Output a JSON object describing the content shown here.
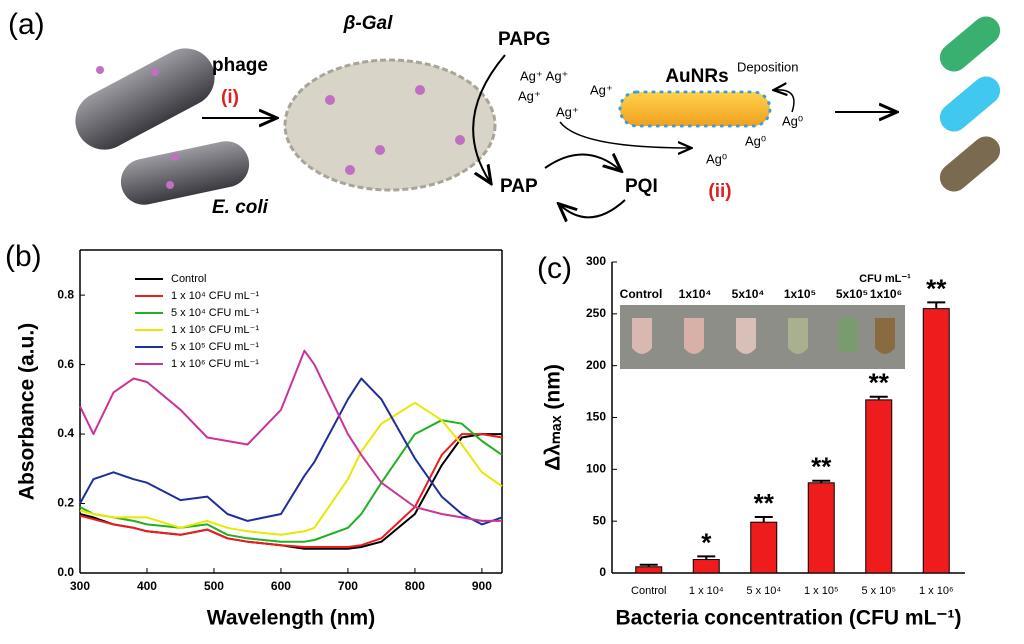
{
  "diagram": {
    "panel": "(a)",
    "phage": "phage",
    "step1": "(i)",
    "enzyme": "β-Gal",
    "papg": "PAPG",
    "ag_a": "Ag⁺ Ag⁺",
    "ag_b": "Ag⁺",
    "ag_c": "Ag⁺",
    "ag_d": "Ag⁺",
    "aunrs": "AuNRs",
    "deposition": "Deposition",
    "ag0_a": "Ag⁰",
    "ag0_b": "Ag⁰",
    "ag0_c": "Ag⁰",
    "pap": "PAP",
    "pqi": "PQI",
    "step2": "(ii)",
    "bacteria": "E. coli"
  },
  "chart_data": [
    {
      "type": "line",
      "panel": "(b)",
      "x_label": "Wavelength (nm)",
      "y_label": "Absorbance (a.u.)",
      "x": [
        300,
        320,
        350,
        380,
        400,
        450,
        490,
        520,
        550,
        600,
        635,
        650,
        700,
        720,
        750,
        800,
        840,
        870,
        900,
        930
      ],
      "xlim": [
        300,
        930
      ],
      "xticks": [
        300,
        400,
        500,
        600,
        700,
        800,
        900
      ],
      "ylim": [
        0,
        0.93
      ],
      "yticks": [
        {
          "value": 0,
          "label": "0.0"
        },
        0.2,
        0.4,
        0.6,
        0.8
      ],
      "legend": "upper left",
      "series": [
        {
          "name": "Control",
          "color": "#000000",
          "values": [
            0.17,
            0.16,
            0.14,
            0.13,
            0.12,
            0.11,
            0.125,
            0.1,
            0.09,
            0.08,
            0.07,
            0.07,
            0.07,
            0.075,
            0.09,
            0.17,
            0.31,
            0.39,
            0.4,
            0.4
          ]
        },
        {
          "name": "1 x 10⁴ CFU mL⁻¹",
          "color": "#ee1c1c",
          "values": [
            0.165,
            0.155,
            0.14,
            0.13,
            0.12,
            0.11,
            0.125,
            0.1,
            0.09,
            0.08,
            0.075,
            0.075,
            0.075,
            0.08,
            0.1,
            0.19,
            0.34,
            0.4,
            0.4,
            0.39
          ]
        },
        {
          "name": "5 x 10⁴ CFU mL⁻¹",
          "color": "#22b022",
          "values": [
            0.19,
            0.17,
            0.16,
            0.15,
            0.14,
            0.13,
            0.14,
            0.11,
            0.1,
            0.09,
            0.09,
            0.095,
            0.13,
            0.17,
            0.26,
            0.4,
            0.44,
            0.43,
            0.38,
            0.34
          ]
        },
        {
          "name": "1 x 10⁵ CFU mL⁻¹",
          "color": "#e8e800",
          "values": [
            0.18,
            0.17,
            0.16,
            0.16,
            0.16,
            0.13,
            0.15,
            0.13,
            0.12,
            0.11,
            0.12,
            0.13,
            0.27,
            0.35,
            0.43,
            0.49,
            0.44,
            0.37,
            0.29,
            0.25
          ]
        },
        {
          "name": "5 x 10⁵ CFU mL⁻¹",
          "color": "#1f2f9a",
          "values": [
            0.2,
            0.27,
            0.29,
            0.27,
            0.26,
            0.21,
            0.22,
            0.17,
            0.15,
            0.17,
            0.28,
            0.32,
            0.5,
            0.56,
            0.5,
            0.33,
            0.22,
            0.17,
            0.14,
            0.16
          ]
        },
        {
          "name": "1 x 10⁶ CFU mL⁻¹",
          "color": "#cc3399",
          "values": [
            0.48,
            0.4,
            0.52,
            0.56,
            0.55,
            0.47,
            0.39,
            0.38,
            0.37,
            0.47,
            0.64,
            0.6,
            0.4,
            0.34,
            0.26,
            0.19,
            0.17,
            0.16,
            0.15,
            0.15
          ]
        }
      ]
    },
    {
      "type": "bar",
      "panel": "(c)",
      "x_label": "Bacteria concentration (CFU mL⁻¹)",
      "y_label": "Δλₘₐₓ (nm)",
      "categories": [
        "Control",
        "1 x 10⁴",
        "5 x 10⁴",
        "1 x 10⁵",
        "5 x 10⁵",
        "1 x 10⁶"
      ],
      "values": [
        6,
        13,
        49,
        87,
        167,
        255
      ],
      "errors": [
        2,
        3,
        5,
        2,
        3,
        6
      ],
      "significance": [
        null,
        "*",
        "**",
        "**",
        "**",
        "**"
      ],
      "color": "#ee1c1c",
      "ylim": [
        0,
        300
      ],
      "yticks": [
        0,
        50,
        100,
        150,
        200,
        250,
        300
      ],
      "inset_labels": [
        "Control",
        "1x10⁴",
        "5x10⁴",
        "1x10⁵",
        "5x10⁵",
        "1x10⁶"
      ],
      "inset_unit": "CFU mL⁻¹"
    }
  ]
}
